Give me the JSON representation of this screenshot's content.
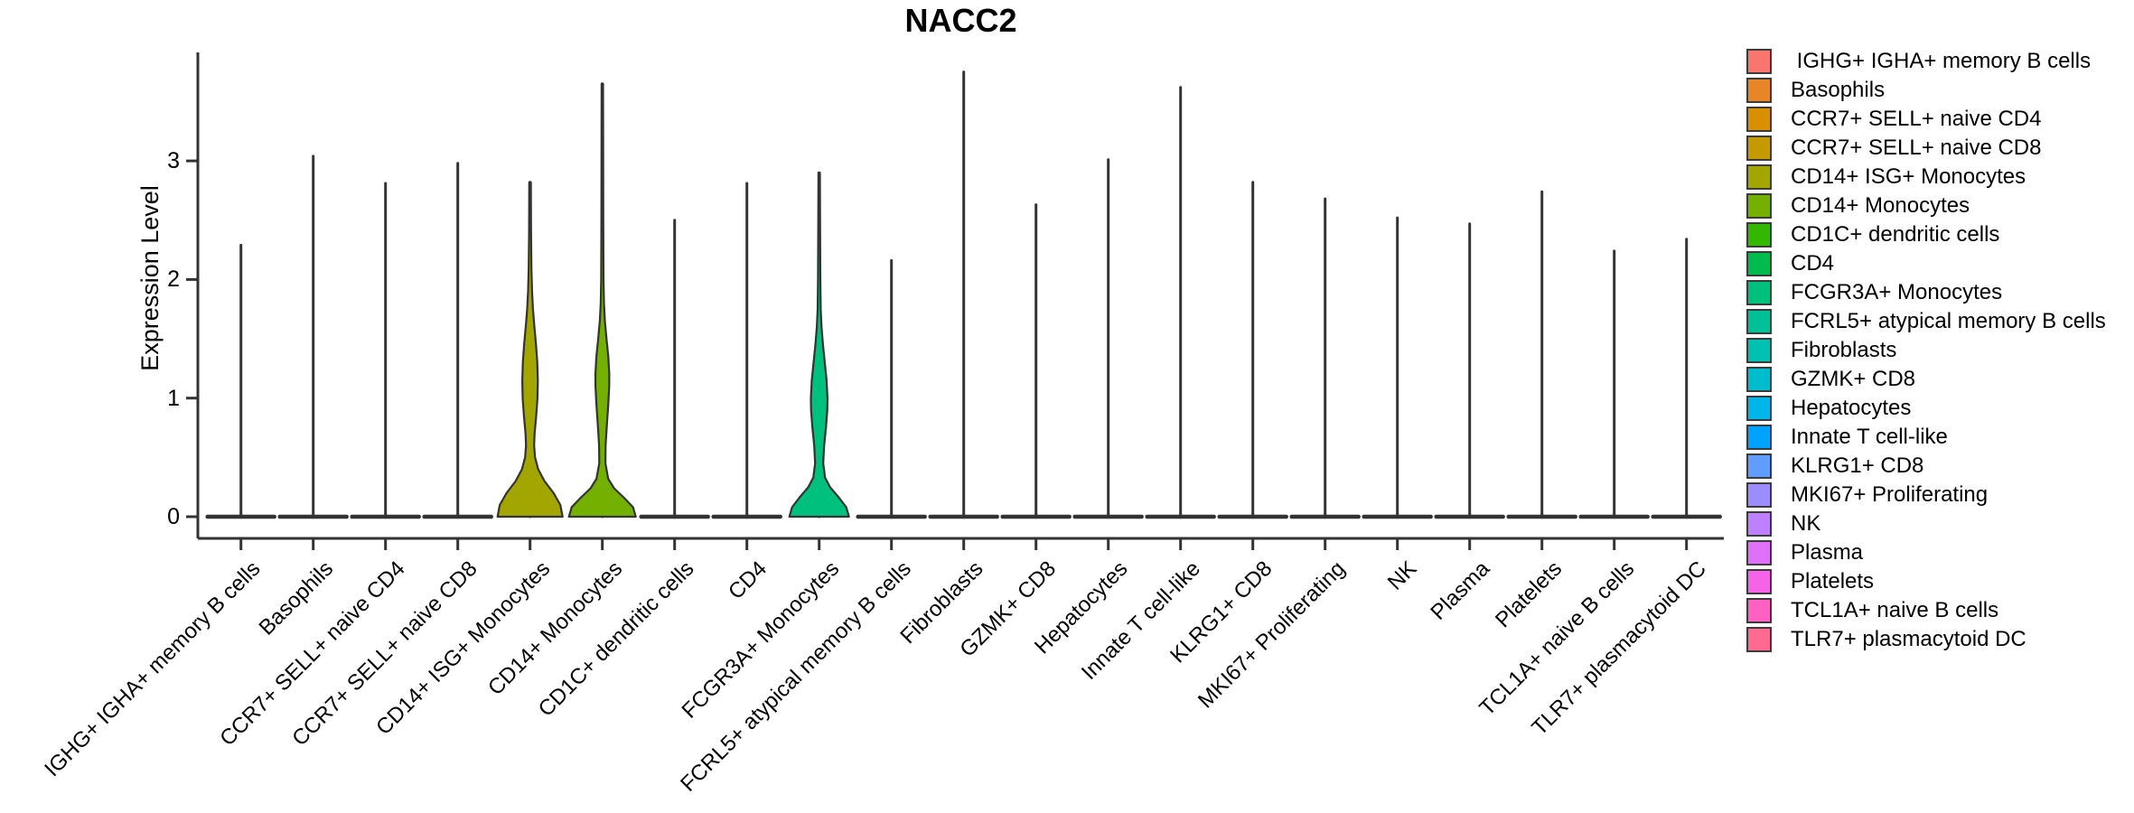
{
  "chart_data": {
    "type": "violin",
    "title": "NACC2",
    "ylabel": "Expression Level",
    "xlabel": "",
    "ylim": [
      0,
      3.92
    ],
    "yticks": [
      0,
      1,
      2,
      3
    ],
    "grid": false,
    "legend_position": "right",
    "categories": [
      "IGHG+ IGHA+ memory B cells",
      "Basophils",
      "CCR7+ SELL+ naive CD4",
      "CCR7+ SELL+ naive CD8",
      "CD14+ ISG+ Monocytes",
      "CD14+ Monocytes",
      "CD1C+ dendritic cells",
      "CD4",
      "FCGR3A+ Monocytes",
      "FCRL5+ atypical memory B cells",
      "Fibroblasts",
      "GZMK+ CD8",
      "Hepatocytes",
      "Innate T cell-like",
      "KLRG1+ CD8",
      "MKI67+ Proliferating",
      "NK",
      "Plasma",
      "Platelets",
      "TCL1A+ naive B cells",
      "TLR7+ plasmacytoid DC"
    ],
    "colors": [
      "#F8766D",
      "#E88526",
      "#D89000",
      "#C49A00",
      "#A3A500",
      "#74B000",
      "#35B600",
      "#00BB4E",
      "#00C07D",
      "#00C098",
      "#00C0B2",
      "#00BDCD",
      "#00B5E9",
      "#00A2FF",
      "#619CFF",
      "#9C8DFF",
      "#BE80FF",
      "#DF70F8",
      "#F563E6",
      "#FF61C2",
      "#FF6A93"
    ],
    "max_expression": [
      2.29,
      3.04,
      2.81,
      2.98,
      2.82,
      3.65,
      2.5,
      2.81,
      2.9,
      2.16,
      3.75,
      2.63,
      3.01,
      3.62,
      2.82,
      2.68,
      2.52,
      2.47,
      2.74,
      2.24,
      2.34
    ],
    "violin_profiles": {
      "4": [
        [
          0,
          36
        ],
        [
          0.1,
          33.5
        ],
        [
          0.2,
          26
        ],
        [
          0.3,
          16
        ],
        [
          0.4,
          9
        ],
        [
          0.5,
          5.5
        ],
        [
          0.6,
          4.5
        ],
        [
          0.7,
          5
        ],
        [
          0.85,
          6.8
        ],
        [
          1.0,
          8.2
        ],
        [
          1.15,
          8.6
        ],
        [
          1.3,
          8
        ],
        [
          1.45,
          6.6
        ],
        [
          1.6,
          4.8
        ],
        [
          1.75,
          3.2
        ],
        [
          1.9,
          2.2
        ],
        [
          2.1,
          1.5
        ],
        [
          2.4,
          1.1
        ],
        [
          2.82,
          0.9
        ]
      ],
      "5": [
        [
          0,
          37
        ],
        [
          0.08,
          34
        ],
        [
          0.16,
          24
        ],
        [
          0.24,
          13
        ],
        [
          0.32,
          6.5
        ],
        [
          0.45,
          3.4
        ],
        [
          0.6,
          3.6
        ],
        [
          0.75,
          4.8
        ],
        [
          0.95,
          6.6
        ],
        [
          1.1,
          7.6
        ],
        [
          1.2,
          7.7
        ],
        [
          1.35,
          6.6
        ],
        [
          1.5,
          4.6
        ],
        [
          1.65,
          2.8
        ],
        [
          1.8,
          1.8
        ],
        [
          2.0,
          1.3
        ],
        [
          2.5,
          1.05
        ],
        [
          3.0,
          0.95
        ],
        [
          3.65,
          0.8
        ]
      ],
      "8": [
        [
          0,
          33
        ],
        [
          0.08,
          30
        ],
        [
          0.16,
          22
        ],
        [
          0.25,
          12
        ],
        [
          0.33,
          6.5
        ],
        [
          0.45,
          4.5
        ],
        [
          0.6,
          5.5
        ],
        [
          0.75,
          7.5
        ],
        [
          0.9,
          9.0
        ],
        [
          1.0,
          9.2
        ],
        [
          1.15,
          8.2
        ],
        [
          1.3,
          6.2
        ],
        [
          1.45,
          4.2
        ],
        [
          1.6,
          2.6
        ],
        [
          1.75,
          1.7
        ],
        [
          2.0,
          1.3
        ],
        [
          2.5,
          1.0
        ],
        [
          2.9,
          0.8
        ]
      ]
    },
    "zero_bar_halfwidth": 37
  },
  "legend": {
    "items": [
      {
        "label": " IGHG+ IGHA+ memory B cells",
        "color": "#F8766D"
      },
      {
        "label": "Basophils",
        "color": "#E88526"
      },
      {
        "label": "CCR7+ SELL+ naive CD4",
        "color": "#D89000"
      },
      {
        "label": "CCR7+ SELL+ naive CD8",
        "color": "#C49A00"
      },
      {
        "label": "CD14+ ISG+ Monocytes",
        "color": "#A3A500"
      },
      {
        "label": "CD14+ Monocytes",
        "color": "#74B000"
      },
      {
        "label": "CD1C+ dendritic cells",
        "color": "#35B600"
      },
      {
        "label": "CD4",
        "color": "#00BB4E"
      },
      {
        "label": "FCGR3A+ Monocytes",
        "color": "#00C07D"
      },
      {
        "label": "FCRL5+ atypical memory B cells",
        "color": "#00C098"
      },
      {
        "label": "Fibroblasts",
        "color": "#00C0B2"
      },
      {
        "label": "GZMK+ CD8",
        "color": "#00BDCD"
      },
      {
        "label": "Hepatocytes",
        "color": "#00B5E9"
      },
      {
        "label": "Innate T cell-like",
        "color": "#00A2FF"
      },
      {
        "label": "KLRG1+ CD8",
        "color": "#619CFF"
      },
      {
        "label": "MKI67+ Proliferating",
        "color": "#9C8DFF"
      },
      {
        "label": "NK",
        "color": "#BE80FF"
      },
      {
        "label": "Plasma",
        "color": "#DF70F8"
      },
      {
        "label": "Platelets",
        "color": "#F563E6"
      },
      {
        "label": "TCL1A+ naive B cells",
        "color": "#FF61C2"
      },
      {
        "label": "TLR7+ plasmacytoid DC",
        "color": "#FF6A93"
      }
    ]
  }
}
